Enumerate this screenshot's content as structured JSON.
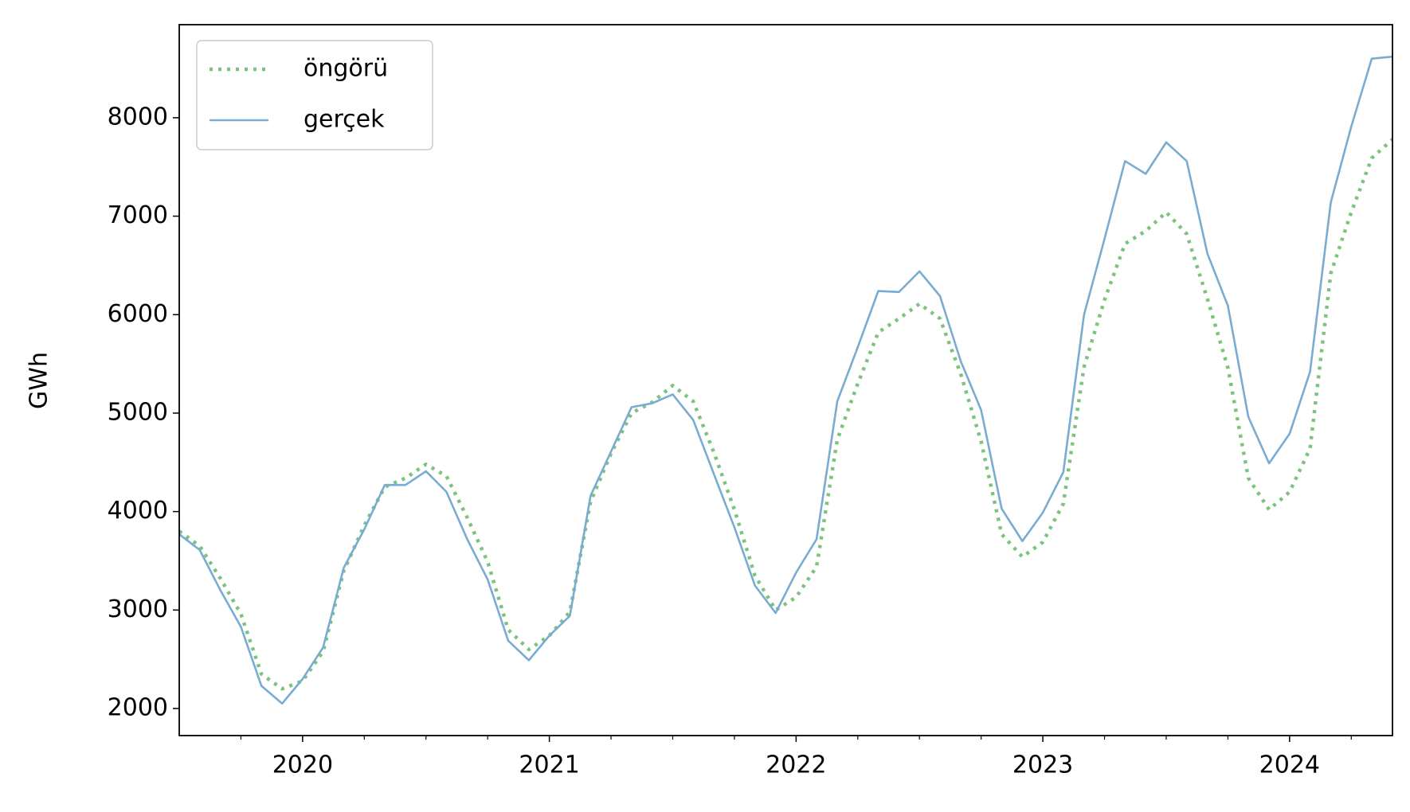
{
  "chart_data": {
    "type": "line",
    "y_label": "GWh",
    "x": [
      2019.5,
      2019.583,
      2019.667,
      2019.75,
      2019.833,
      2019.917,
      2020,
      2020.083,
      2020.167,
      2020.25,
      2020.333,
      2020.417,
      2020.5,
      2020.583,
      2020.667,
      2020.75,
      2020.833,
      2020.917,
      2021,
      2021.083,
      2021.167,
      2021.25,
      2021.333,
      2021.417,
      2021.5,
      2021.583,
      2021.667,
      2021.75,
      2021.833,
      2021.917,
      2022,
      2022.083,
      2022.167,
      2022.25,
      2022.333,
      2022.417,
      2022.5,
      2022.583,
      2022.667,
      2022.75,
      2022.833,
      2022.917,
      2023,
      2023.083,
      2023.167,
      2023.25,
      2023.333,
      2023.417,
      2023.5,
      2023.583,
      2023.667,
      2023.75,
      2023.833,
      2023.917,
      2024,
      2024.083,
      2024.167,
      2024.25,
      2024.333,
      2024.417
    ],
    "series": [
      {
        "name": "öngörü",
        "color": "#7cc47c",
        "style": "dotted",
        "values": [
          3800,
          3650,
          3320,
          2960,
          2350,
          2200,
          2280,
          2580,
          3400,
          3860,
          4250,
          4340,
          4480,
          4360,
          3940,
          3490,
          2800,
          2600,
          2740,
          2980,
          4100,
          4590,
          5000,
          5110,
          5280,
          5120,
          4600,
          4020,
          3350,
          3000,
          3130,
          3440,
          4730,
          5300,
          5820,
          5960,
          6110,
          5960,
          5400,
          4710,
          3770,
          3540,
          3690,
          4080,
          5470,
          6150,
          6720,
          6850,
          7040,
          6820,
          6160,
          5460,
          4340,
          4020,
          4200,
          4640,
          6420,
          7040,
          7590,
          7780
        ]
      },
      {
        "name": "gerçek",
        "color": "#79acd2",
        "style": "solid",
        "values": [
          3770,
          3610,
          3200,
          2830,
          2230,
          2050,
          2300,
          2620,
          3430,
          3820,
          4270,
          4270,
          4410,
          4200,
          3720,
          3310,
          2690,
          2490,
          2740,
          2940,
          4160,
          4610,
          5060,
          5100,
          5190,
          4930,
          4380,
          3840,
          3250,
          2970,
          3380,
          3720,
          5120,
          5670,
          6240,
          6230,
          6440,
          6190,
          5530,
          5030,
          4030,
          3700,
          3990,
          4400,
          6000,
          6770,
          7560,
          7430,
          7750,
          7560,
          6620,
          6090,
          4960,
          4490,
          4790,
          5420,
          7140,
          7910,
          8600,
          8620
        ]
      }
    ],
    "xlim": [
      2019.5,
      2024.417
    ],
    "xticks": [
      2020,
      2021,
      2022,
      2023,
      2024
    ],
    "xminorticks": [
      2019.75,
      2020.25,
      2020.5,
      2020.75,
      2021.25,
      2021.5,
      2021.75,
      2022.25,
      2022.5,
      2022.75,
      2023.25,
      2023.5,
      2023.75,
      2024.25
    ],
    "ylim": [
      1725,
      8945
    ],
    "yticks": [
      2000,
      3000,
      4000,
      5000,
      6000,
      7000,
      8000
    ],
    "legend": "upper left",
    "grid": false
  }
}
